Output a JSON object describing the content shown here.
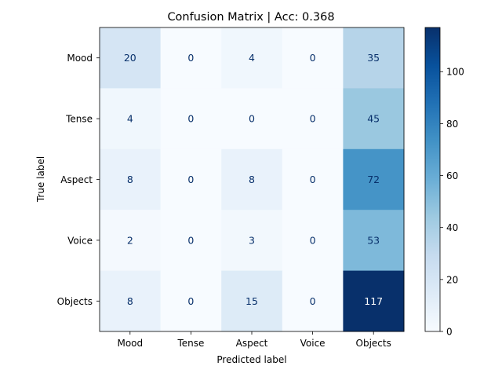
{
  "chart_data": {
    "type": "heatmap",
    "title": "Confusion Matrix | Acc: 0.368",
    "xlabel": "Predicted label",
    "ylabel": "True label",
    "x_categories": [
      "Mood",
      "Tense",
      "Aspect",
      "Voice",
      "Objects"
    ],
    "y_categories": [
      "Mood",
      "Tense",
      "Aspect",
      "Voice",
      "Objects"
    ],
    "values": [
      [
        20,
        0,
        4,
        0,
        35
      ],
      [
        4,
        0,
        0,
        0,
        45
      ],
      [
        8,
        0,
        8,
        0,
        72
      ],
      [
        2,
        0,
        3,
        0,
        53
      ],
      [
        8,
        0,
        15,
        0,
        117
      ]
    ],
    "colormap": "Blues",
    "color_range": [
      0,
      117
    ],
    "colorbar_ticks": [
      0,
      20,
      40,
      60,
      80,
      100
    ]
  }
}
